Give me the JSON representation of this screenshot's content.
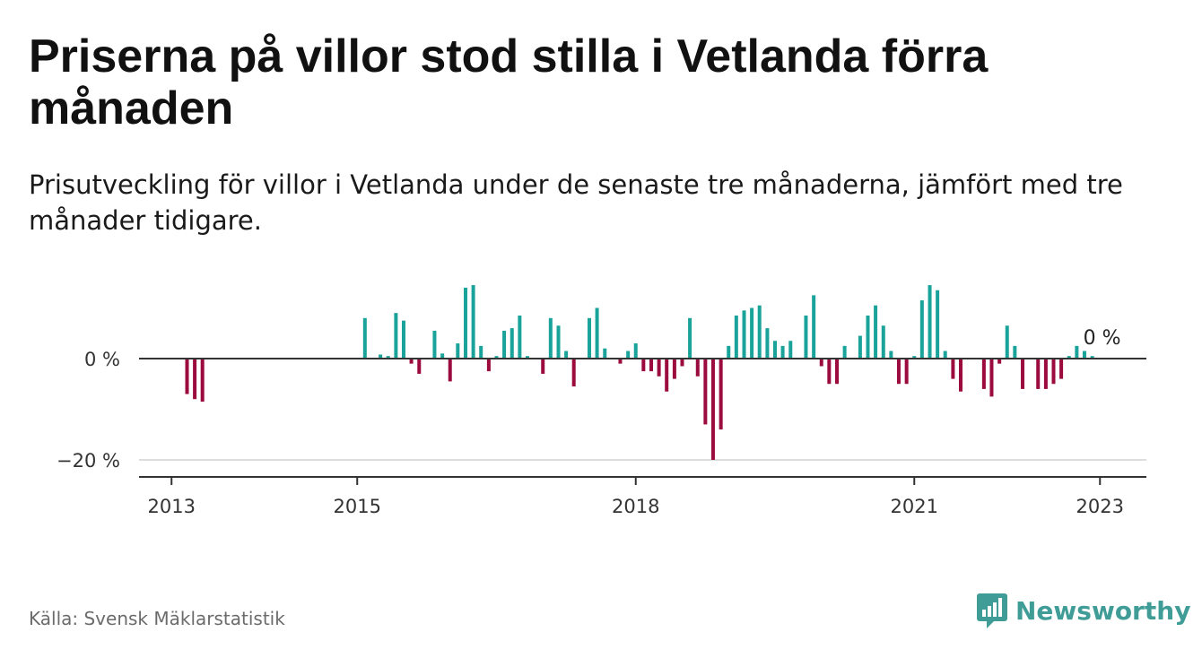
{
  "header": {
    "title": "Priserna på villor stod stilla i Vetlanda förra månaden",
    "subtitle": "Prisutveckling för villor i Vetlanda under de senaste tre månaderna, jämfört med tre månader tidigare."
  },
  "footer": {
    "source": "Källa: Svensk Mäklarstatistik",
    "brand": "Newsworthy"
  },
  "colors": {
    "positive": "#1aa39a",
    "negative": "#9b0b3e",
    "axis": "#333333",
    "grid": "#dddddd",
    "brand": "#3f9c96"
  },
  "icons": {
    "brand_logo": "bar-chart-icon"
  },
  "chart_data": {
    "type": "bar",
    "title": "",
    "xlabel": "",
    "ylabel": "",
    "ylim": [
      -22,
      17
    ],
    "y_ticks": [
      0,
      -20
    ],
    "y_tick_labels": [
      "0 %",
      "−20 %"
    ],
    "x_ticks": [
      2013,
      2015,
      2018,
      2021,
      2023
    ],
    "x_range": [
      2012.65,
      2023.5
    ],
    "grid": "horizontal",
    "end_annotation": "0 %",
    "x": [
      2013.167,
      2013.25,
      2013.333,
      2015.083,
      2015.25,
      2015.333,
      2015.417,
      2015.5,
      2015.583,
      2015.667,
      2015.833,
      2015.917,
      2016.0,
      2016.083,
      2016.167,
      2016.25,
      2016.333,
      2016.417,
      2016.5,
      2016.583,
      2016.667,
      2016.75,
      2016.833,
      2017.0,
      2017.083,
      2017.167,
      2017.25,
      2017.333,
      2017.5,
      2017.583,
      2017.667,
      2017.833,
      2017.917,
      2018.0,
      2018.083,
      2018.167,
      2018.25,
      2018.333,
      2018.417,
      2018.5,
      2018.583,
      2018.667,
      2018.75,
      2018.833,
      2018.917,
      2019.0,
      2019.083,
      2019.167,
      2019.25,
      2019.333,
      2019.417,
      2019.5,
      2019.583,
      2019.667,
      2019.833,
      2019.917,
      2020.0,
      2020.083,
      2020.167,
      2020.25,
      2020.417,
      2020.5,
      2020.583,
      2020.667,
      2020.75,
      2020.833,
      2020.917,
      2021.0,
      2021.083,
      2021.167,
      2021.25,
      2021.333,
      2021.417,
      2021.5,
      2021.75,
      2021.833,
      2021.917,
      2022.0,
      2022.083,
      2022.167,
      2022.333,
      2022.417,
      2022.5,
      2022.583,
      2022.667,
      2022.75,
      2022.833,
      2022.917
    ],
    "values": [
      -7,
      -8,
      -8.5,
      8,
      0.8,
      0.5,
      9,
      7.5,
      -1,
      -3,
      5.5,
      1,
      -4.5,
      3,
      14,
      14.5,
      2.5,
      -2.5,
      0.5,
      5.5,
      6,
      8.5,
      0.5,
      -3,
      8,
      6.5,
      1.5,
      -5.5,
      8,
      10,
      2,
      -1,
      1.5,
      3,
      -2.5,
      -2.5,
      -3.5,
      -6.5,
      -4,
      -1.5,
      8,
      -3.5,
      -13,
      -20,
      -14,
      2.5,
      8.5,
      9.5,
      10,
      10.5,
      6,
      3.5,
      2.5,
      3.5,
      8.5,
      12.5,
      -1.5,
      -5,
      -5,
      2.5,
      4.5,
      8.5,
      10.5,
      6.5,
      1.5,
      -5,
      -5,
      0.5,
      11.5,
      14.5,
      13.5,
      1.5,
      -4,
      -6.5,
      -6,
      -7.5,
      -1,
      6.5,
      2.5,
      -6,
      -6,
      -6,
      -5,
      -4,
      0.5,
      2.5,
      1.5,
      0.5
    ]
  }
}
